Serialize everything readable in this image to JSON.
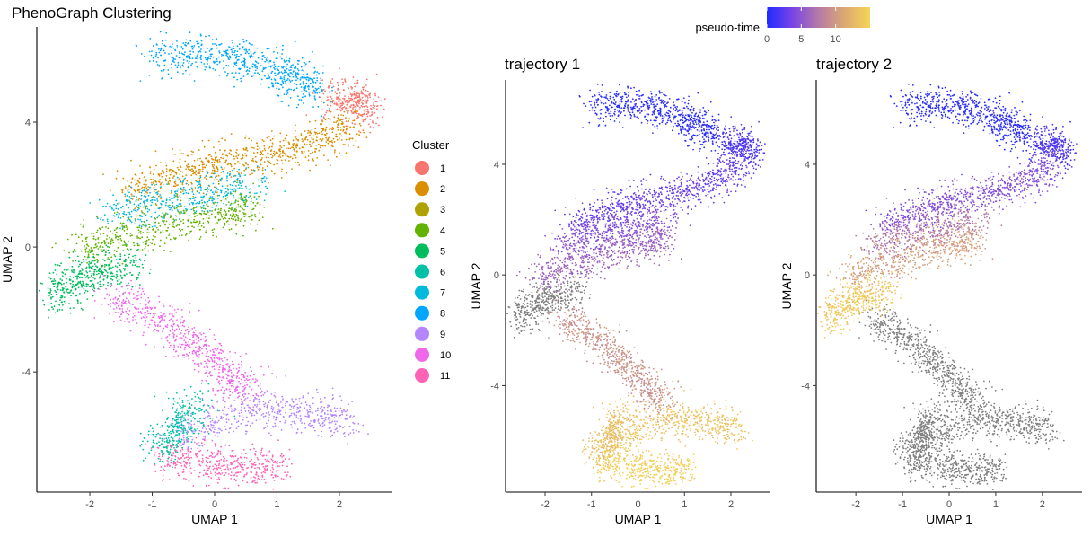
{
  "chart_data": [
    {
      "type": "scatter",
      "title": "PhenoGraph Clustering",
      "xlabel": "UMAP 1",
      "ylabel": "UMAP 2",
      "xlim": [
        -2.85,
        2.85
      ],
      "ylim": [
        -7.85,
        7.05
      ],
      "xticks": [
        -2,
        -1,
        0,
        1,
        2
      ],
      "yticks": [
        -4,
        0,
        4
      ],
      "grid": false,
      "legend": {
        "title": "Cluster",
        "position": "right",
        "entries": [
          {
            "label": "1",
            "color": "#F8766D"
          },
          {
            "label": "2",
            "color": "#DB8E00"
          },
          {
            "label": "3",
            "color": "#AEA200"
          },
          {
            "label": "4",
            "color": "#64B200"
          },
          {
            "label": "5",
            "color": "#00BD5C"
          },
          {
            "label": "6",
            "color": "#00C1A7"
          },
          {
            "label": "7",
            "color": "#00BADE"
          },
          {
            "label": "8",
            "color": "#00A6FF"
          },
          {
            "label": "9",
            "color": "#B385FF"
          },
          {
            "label": "10",
            "color": "#EF67EB"
          },
          {
            "label": "11",
            "color": "#FF63B6"
          }
        ]
      },
      "clusters": [
        {
          "label": "8",
          "x": [
            -1.0,
            -0.5,
            0.0,
            0.5,
            1.0,
            1.3,
            1.6
          ],
          "y": [
            6.1,
            6.2,
            6.15,
            6.0,
            5.7,
            5.4,
            5.0
          ]
        },
        {
          "label": "1",
          "x": [
            1.9,
            2.1,
            2.3,
            2.5
          ],
          "y": [
            4.8,
            4.7,
            4.6,
            4.4
          ]
        },
        {
          "label": "2",
          "x": [
            -1.4,
            -0.8,
            -0.2,
            0.4,
            1.0,
            1.4,
            1.8,
            2.2
          ],
          "y": [
            1.8,
            2.2,
            2.5,
            2.8,
            3.0,
            3.2,
            3.5,
            4.1
          ]
        },
        {
          "label": "7",
          "x": [
            -1.7,
            -1.1,
            -0.5,
            0.1,
            0.7
          ],
          "y": [
            1.0,
            1.3,
            1.6,
            1.8,
            2.0
          ]
        },
        {
          "label": "4",
          "x": [
            -2.2,
            -1.6,
            -1.0,
            -0.4,
            0.2,
            0.6
          ],
          "y": [
            -0.1,
            0.3,
            0.6,
            0.9,
            1.1,
            1.3
          ]
        },
        {
          "label": "5",
          "x": [
            -2.6,
            -2.4,
            -2.0,
            -1.6,
            -1.2
          ],
          "y": [
            -1.7,
            -1.2,
            -0.9,
            -0.7,
            -0.4
          ]
        },
        {
          "label": "10",
          "x": [
            -1.7,
            -1.2,
            -0.7,
            -0.3,
            0.0,
            0.3,
            0.6
          ],
          "y": [
            -1.6,
            -2.0,
            -2.5,
            -3.1,
            -3.8,
            -4.3,
            -4.6
          ]
        },
        {
          "label": "9",
          "x": [
            -0.6,
            0.0,
            0.6,
            1.2,
            1.8,
            2.2
          ],
          "y": [
            -6.0,
            -5.6,
            -5.2,
            -5.3,
            -5.4,
            -5.6
          ]
        },
        {
          "label": "6",
          "x": [
            -0.9,
            -0.7,
            -0.5,
            -0.3
          ],
          "y": [
            -6.5,
            -6.1,
            -5.6,
            -4.9
          ]
        },
        {
          "label": "11",
          "x": [
            -0.8,
            -0.3,
            0.2,
            0.7,
            1.1
          ],
          "y": [
            -6.8,
            -6.9,
            -7.0,
            -7.1,
            -7.0
          ]
        }
      ]
    },
    {
      "type": "scatter",
      "title": "trajectory 1",
      "xlabel": "UMAP 1",
      "ylabel": "UMAP 2",
      "xlim": [
        -2.85,
        2.85
      ],
      "ylim": [
        -7.85,
        7.05
      ],
      "xticks": [
        -2,
        -1,
        0,
        1,
        2
      ],
      "yticks": [
        -4,
        0,
        4
      ],
      "grid": false,
      "color_variable": "pseudo-time",
      "not_on_trajectory_color": "#808080",
      "not_on_trajectory_clusters": [
        "5"
      ],
      "pseudotime_by_cluster": {
        "8": 0.5,
        "1": 2.0,
        "2": 3.0,
        "7": 4.5,
        "4": 6.0,
        "10": 9.5,
        "6": 13.0,
        "9": 13.5,
        "11": 14.5
      }
    },
    {
      "type": "scatter",
      "title": "trajectory 2",
      "xlabel": "UMAP 1",
      "ylabel": "UMAP 2",
      "xlim": [
        -2.85,
        2.85
      ],
      "ylim": [
        -7.85,
        7.05
      ],
      "xticks": [
        -2,
        -1,
        0,
        1,
        2
      ],
      "yticks": [
        -4,
        0,
        4
      ],
      "grid": false,
      "color_variable": "pseudo-time",
      "not_on_trajectory_color": "#808080",
      "not_on_trajectory_clusters": [
        "10",
        "9",
        "6",
        "11"
      ],
      "pseudotime_by_cluster": {
        "8": 0.5,
        "1": 2.0,
        "2": 4.5,
        "7": 7.5,
        "4": 10.5,
        "5": 14.0
      }
    }
  ],
  "colorbar": {
    "title": "pseudo-time",
    "ticks": [
      0,
      5,
      10
    ],
    "range": [
      0,
      15
    ],
    "colors": [
      "#1F2BFF",
      "#7A44E6",
      "#B57AA6",
      "#DCA872",
      "#F5D655"
    ]
  }
}
